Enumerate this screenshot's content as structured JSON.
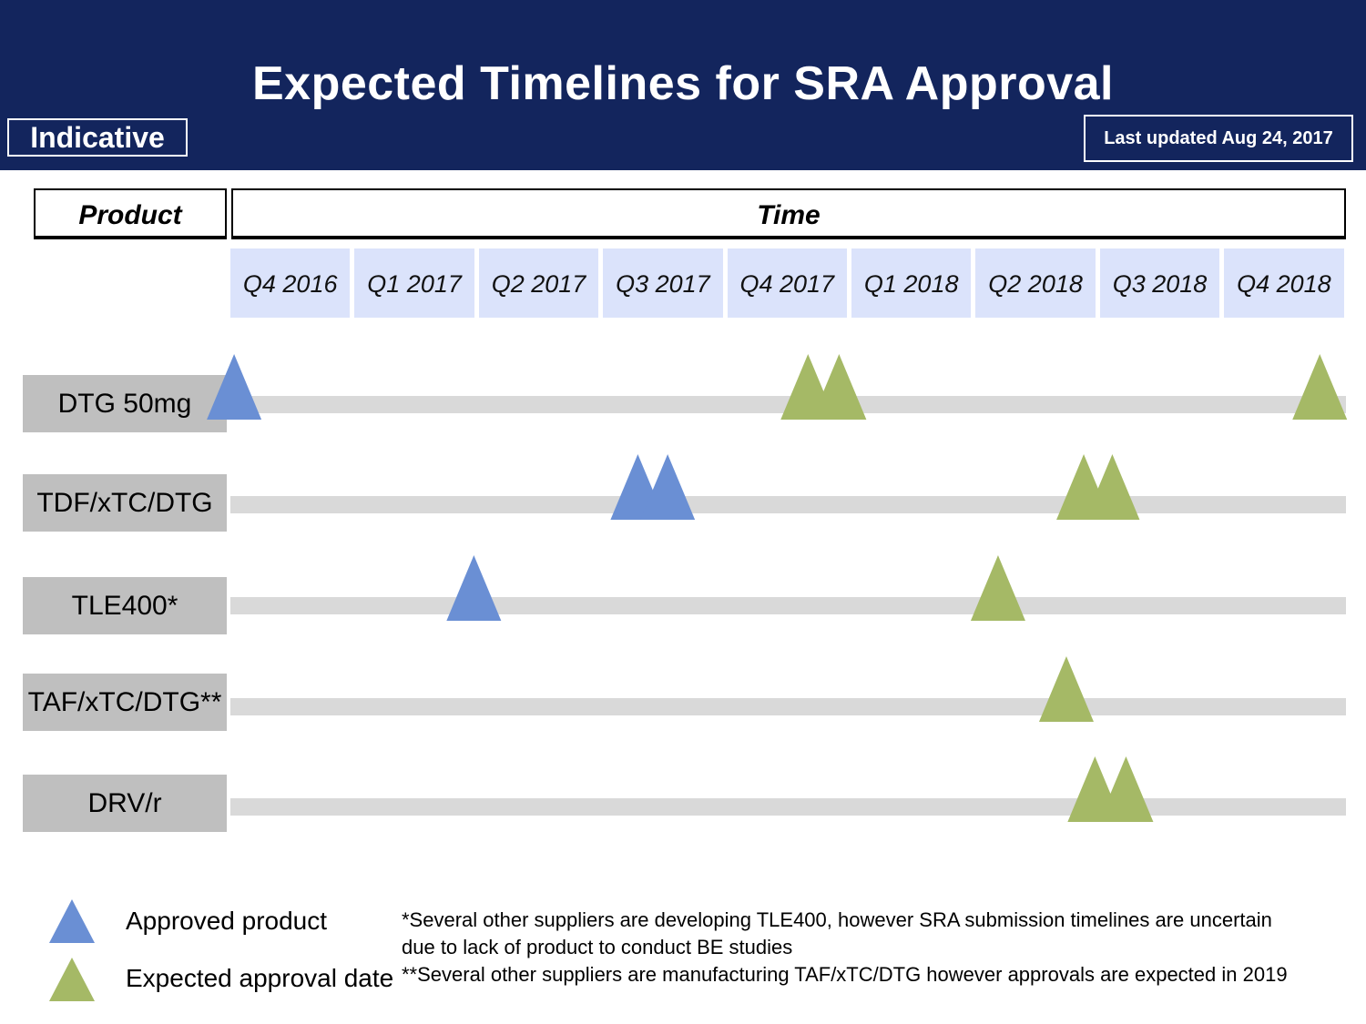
{
  "header": {
    "title": "Expected Timelines for SRA Approval",
    "indicative": "Indicative",
    "last_updated": "Last updated Aug 24, 2017"
  },
  "table_header": {
    "product": "Product",
    "time": "Time"
  },
  "colors": {
    "approved": "#6a8fd4",
    "expected": "#a5b966",
    "header_bg": "#13255d"
  },
  "chart_data": {
    "type": "timeline",
    "title": "Expected Timelines for SRA Approval",
    "quarters": [
      "Q4 2016",
      "Q1 2017",
      "Q2 2017",
      "Q3 2017",
      "Q4 2017",
      "Q1 2018",
      "Q2 2018",
      "Q3 2018",
      "Q4 2018"
    ],
    "x_range": [
      0,
      9
    ],
    "products": [
      {
        "name": "DTG 50mg",
        "markers": [
          {
            "status": "approved",
            "quarter_pos": 0.03
          },
          {
            "status": "expected",
            "quarter_pos": 4.65
          },
          {
            "status": "expected",
            "quarter_pos": 4.9
          },
          {
            "status": "expected",
            "quarter_pos": 8.77
          }
        ]
      },
      {
        "name": "TDF/xTC/DTG",
        "markers": [
          {
            "status": "approved",
            "quarter_pos": 3.28
          },
          {
            "status": "approved",
            "quarter_pos": 3.52
          },
          {
            "status": "expected",
            "quarter_pos": 6.87
          },
          {
            "status": "expected",
            "quarter_pos": 7.1
          }
        ]
      },
      {
        "name": "TLE400*",
        "markers": [
          {
            "status": "approved",
            "quarter_pos": 1.96
          },
          {
            "status": "expected",
            "quarter_pos": 6.18
          }
        ]
      },
      {
        "name": "TAF/xTC/DTG**",
        "markers": [
          {
            "status": "expected",
            "quarter_pos": 6.73
          }
        ]
      },
      {
        "name": "DRV/r",
        "markers": [
          {
            "status": "expected",
            "quarter_pos": 6.96
          },
          {
            "status": "expected",
            "quarter_pos": 7.21
          }
        ]
      }
    ],
    "legend": [
      {
        "status": "approved",
        "label": "Approved product"
      },
      {
        "status": "expected",
        "label": "Expected approval date"
      }
    ]
  },
  "notes": [
    "*Several other suppliers are developing TLE400, however SRA submission timelines  are uncertain",
    "due to lack of product to conduct BE studies",
    "**Several  other suppliers are manufacturing TAF/xTC/DTG however approvals  are expected in 2019"
  ]
}
